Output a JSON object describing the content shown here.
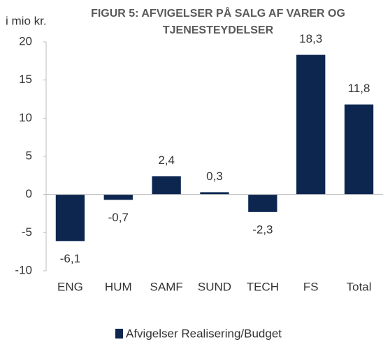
{
  "chart_data": {
    "type": "bar",
    "title": "FIGUR 5: AFVIGELSER PÅ SALG AF VARER OG TJENESTEYDELSER",
    "y_label": "i mio kr.",
    "categories": [
      "ENG",
      "HUM",
      "SAMF",
      "SUND",
      "TECH",
      "FS",
      "Total"
    ],
    "series": [
      {
        "name": "Afvigelser Realisering/Budget",
        "color": "#0c2650",
        "values": [
          -6.1,
          -0.7,
          2.4,
          0.3,
          -2.3,
          18.3,
          11.8
        ],
        "value_labels": [
          "-6,1",
          "-0,7",
          "2,4",
          "0,3",
          "-2,3",
          "18,3",
          "11,8"
        ]
      }
    ],
    "ylim": [
      -10,
      20
    ],
    "yticks": [
      -10,
      -5,
      0,
      5,
      10,
      15,
      20
    ],
    "legend": "bottom"
  }
}
